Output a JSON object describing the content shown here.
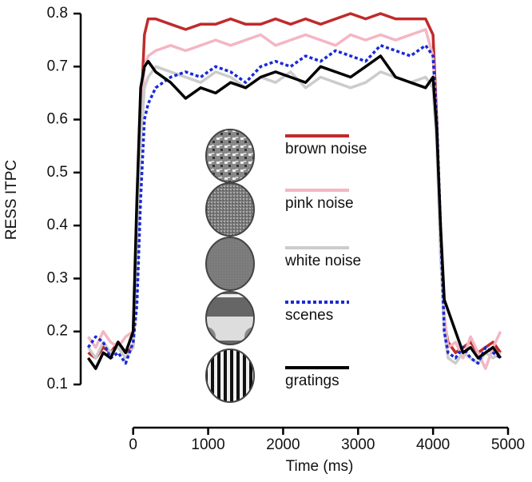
{
  "chart_data": {
    "type": "line",
    "x_label": "Time (ms)",
    "y_label": "RESS ITPC",
    "x": [
      -600,
      -500,
      -400,
      -300,
      -200,
      -100,
      0,
      50,
      100,
      150,
      200,
      300,
      500,
      700,
      900,
      1100,
      1300,
      1500,
      1700,
      1900,
      2100,
      2300,
      2500,
      2700,
      2900,
      3100,
      3300,
      3500,
      3700,
      3900,
      4000,
      4050,
      4100,
      4150,
      4200,
      4300,
      4400,
      4500,
      4600,
      4700,
      4800,
      4900
    ],
    "series": [
      {
        "name": "brown noise",
        "color": "#bf2b2b",
        "line_style": "solid",
        "values": [
          0.16,
          0.15,
          0.17,
          0.16,
          0.18,
          0.16,
          0.17,
          0.3,
          0.6,
          0.76,
          0.79,
          0.79,
          0.78,
          0.77,
          0.78,
          0.78,
          0.79,
          0.78,
          0.78,
          0.79,
          0.78,
          0.79,
          0.78,
          0.79,
          0.8,
          0.79,
          0.8,
          0.79,
          0.79,
          0.79,
          0.76,
          0.6,
          0.35,
          0.22,
          0.18,
          0.16,
          0.17,
          0.18,
          0.16,
          0.17,
          0.18,
          0.16
        ]
      },
      {
        "name": "pink noise",
        "color": "#f4b6c2",
        "line_style": "solid",
        "values": [
          0.19,
          0.17,
          0.2,
          0.18,
          0.17,
          0.19,
          0.2,
          0.35,
          0.6,
          0.7,
          0.72,
          0.73,
          0.74,
          0.73,
          0.74,
          0.75,
          0.74,
          0.75,
          0.76,
          0.74,
          0.75,
          0.76,
          0.75,
          0.74,
          0.76,
          0.75,
          0.76,
          0.75,
          0.76,
          0.77,
          0.72,
          0.58,
          0.35,
          0.23,
          0.17,
          0.18,
          0.15,
          0.19,
          0.16,
          0.13,
          0.17,
          0.2
        ]
      },
      {
        "name": "white noise",
        "color": "#cccccc",
        "line_style": "solid",
        "values": [
          0.17,
          0.15,
          0.18,
          0.16,
          0.17,
          0.15,
          0.17,
          0.3,
          0.55,
          0.66,
          0.68,
          0.7,
          0.69,
          0.68,
          0.67,
          0.69,
          0.68,
          0.66,
          0.68,
          0.67,
          0.69,
          0.66,
          0.68,
          0.67,
          0.66,
          0.67,
          0.69,
          0.68,
          0.67,
          0.68,
          0.66,
          0.55,
          0.35,
          0.2,
          0.15,
          0.14,
          0.16,
          0.15,
          0.14,
          0.16,
          0.15,
          0.16
        ]
      },
      {
        "name": "scenes",
        "color": "#1a2ad6",
        "line_style": "dotted",
        "values": [
          0.17,
          0.19,
          0.18,
          0.15,
          0.16,
          0.14,
          0.18,
          0.25,
          0.45,
          0.6,
          0.63,
          0.66,
          0.68,
          0.69,
          0.68,
          0.7,
          0.69,
          0.67,
          0.7,
          0.71,
          0.7,
          0.72,
          0.71,
          0.73,
          0.72,
          0.71,
          0.74,
          0.73,
          0.72,
          0.74,
          0.72,
          0.6,
          0.4,
          0.2,
          0.16,
          0.15,
          0.17,
          0.15,
          0.14,
          0.17,
          0.16,
          0.15
        ]
      },
      {
        "name": "gratings",
        "color": "#000000",
        "line_style": "solid",
        "values": [
          0.15,
          0.13,
          0.16,
          0.15,
          0.18,
          0.16,
          0.2,
          0.45,
          0.66,
          0.7,
          0.71,
          0.69,
          0.67,
          0.64,
          0.66,
          0.65,
          0.67,
          0.66,
          0.68,
          0.69,
          0.68,
          0.67,
          0.7,
          0.69,
          0.68,
          0.7,
          0.72,
          0.68,
          0.67,
          0.66,
          0.68,
          0.58,
          0.4,
          0.26,
          0.24,
          0.2,
          0.16,
          0.17,
          0.15,
          0.16,
          0.17,
          0.15
        ]
      }
    ],
    "xlim": [
      -700,
      5000
    ],
    "xticks": [
      0,
      1000,
      2000,
      3000,
      4000,
      5000
    ],
    "ylim": [
      0.1,
      0.8
    ],
    "yticks": [
      0.1,
      0.2,
      0.3,
      0.4,
      0.5,
      0.6,
      0.7,
      0.8
    ]
  }
}
